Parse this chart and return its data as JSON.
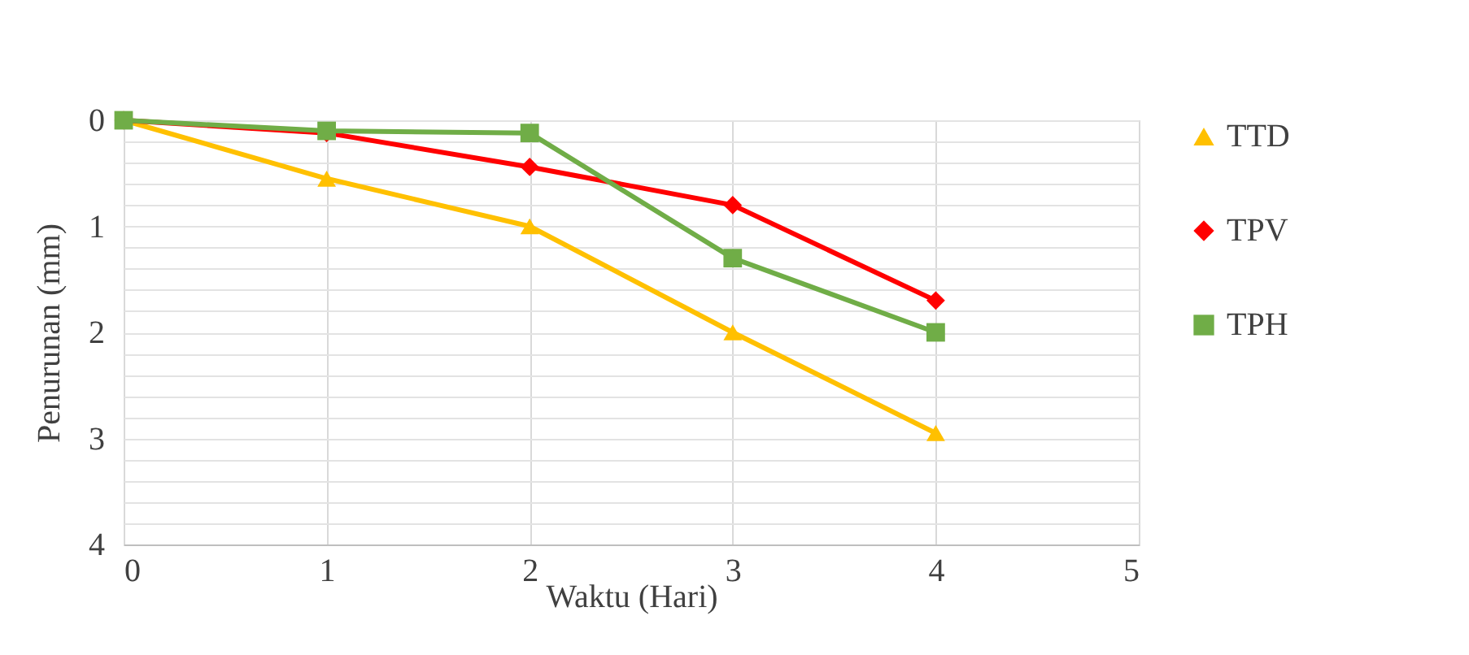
{
  "chart_data": {
    "type": "line",
    "xlabel": "Waktu (Hari)",
    "ylabel": "Penurunan (mm)",
    "x": [
      0,
      1,
      2,
      3,
      4
    ],
    "series": [
      {
        "name": "TTD",
        "color": "#ffc000",
        "marker": "triangle",
        "values": [
          0,
          0.55,
          1.0,
          2.0,
          2.95
        ]
      },
      {
        "name": "TPV",
        "color": "#ff0000",
        "marker": "diamond",
        "values": [
          0,
          0.12,
          0.44,
          0.8,
          1.7
        ]
      },
      {
        "name": "TPH",
        "color": "#70ad47",
        "marker": "square",
        "values": [
          0,
          0.1,
          0.12,
          1.3,
          2.0
        ]
      }
    ],
    "xlim": [
      0,
      5
    ],
    "xticks": [
      0,
      1,
      2,
      3,
      4,
      5
    ],
    "ylim": [
      4,
      0
    ],
    "yticks": [
      0,
      {
        "value": 0.2,
        "label": null
      },
      {
        "value": 0.4,
        "label": null
      },
      {
        "value": 0.6,
        "label": null
      },
      {
        "value": 0.8,
        "label": null
      },
      1,
      {
        "value": 1.2,
        "label": null
      },
      {
        "value": 1.4,
        "label": null
      },
      {
        "value": 1.6,
        "label": null
      },
      {
        "value": 1.8,
        "label": null
      },
      2,
      {
        "value": 2.2,
        "label": null
      },
      {
        "value": 2.4,
        "label": null
      },
      {
        "value": 2.6,
        "label": null
      },
      {
        "value": 2.8,
        "label": null
      },
      3,
      {
        "value": 3.2,
        "label": null
      },
      {
        "value": 3.4,
        "label": null
      },
      {
        "value": 3.6,
        "label": null
      },
      {
        "value": 3.8,
        "label": null
      },
      4
    ],
    "grid": true,
    "legend": "right",
    "line_style": "solid"
  }
}
